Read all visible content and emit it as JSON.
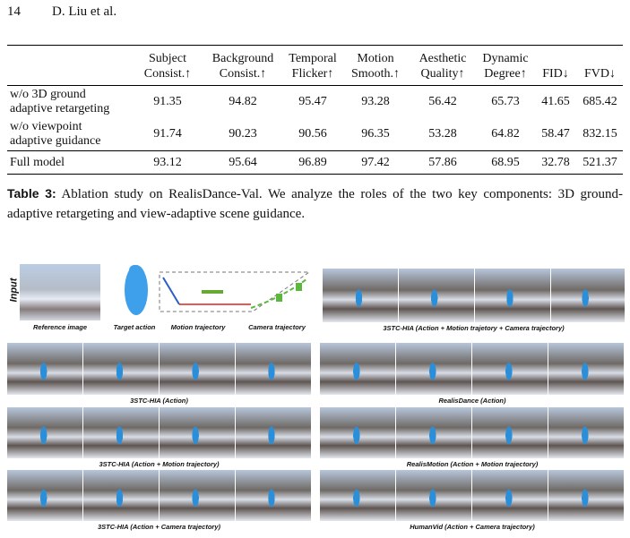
{
  "header": {
    "page_number": "14",
    "authors": "D. Liu et al."
  },
  "table": {
    "columns": [
      [
        "Subject",
        "Consist.↑"
      ],
      [
        "Background",
        "Consist.↑"
      ],
      [
        "Temporal",
        "Flicker↑"
      ],
      [
        "Motion",
        "Smooth.↑"
      ],
      [
        "Aesthetic",
        "Quality↑"
      ],
      [
        "Dynamic",
        "Degree↑"
      ],
      [
        "FID↓"
      ],
      [
        "FVD↓"
      ]
    ],
    "rows": [
      {
        "label": [
          "w/o 3D ground",
          "adaptive retargeting"
        ],
        "values": [
          "91.35",
          "94.82",
          "95.47",
          "93.28",
          "56.42",
          "65.73",
          "41.65",
          "685.42"
        ]
      },
      {
        "label": [
          "w/o viewpoint",
          "adaptive guidance"
        ],
        "values": [
          "91.74",
          "90.23",
          "90.56",
          "96.35",
          "53.28",
          "64.82",
          "58.47",
          "832.15"
        ]
      },
      {
        "label": [
          "Full model"
        ],
        "values": [
          "93.12",
          "95.64",
          "96.89",
          "97.42",
          "57.86",
          "68.95",
          "32.78",
          "521.37"
        ]
      }
    ]
  },
  "caption": {
    "label": "Table 3:",
    "text": "Ablation study on RealisDance-Val. We analyze the roles of the two key components: 3D ground-adaptive retargeting and view-adaptive scene guidance."
  },
  "figure": {
    "input_label": "Input",
    "reference_label": "Reference image",
    "target_label": "Target action",
    "motion_label": "Motion trajectory",
    "camera_label": "Camera trajectory",
    "panels": [
      "3STC-HIA (Action + Motion trajetory + Camera trajectory)",
      "3STC-HIA (Action)",
      "RealisDance (Action)",
      "3STC-HIA (Action + Motion trajectory)",
      "RealisMotion (Action + Motion trajectory)",
      "3STC-HIA (Action + Camera trajectory)",
      "HumanVid (Action + Camera trajectory)"
    ]
  }
}
